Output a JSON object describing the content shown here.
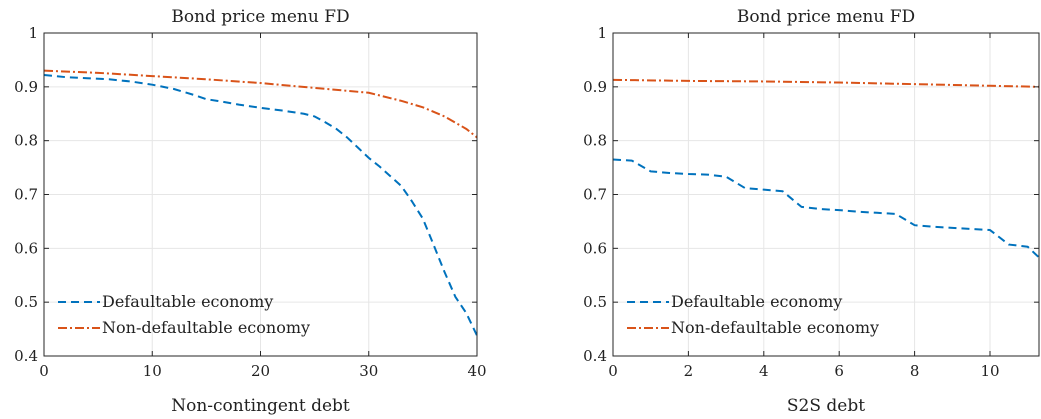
{
  "chart_data": [
    {
      "type": "line",
      "title": "Bond price menu FD",
      "xlabel": "Non-contingent debt",
      "ylabel": "",
      "xlim": [
        0,
        40
      ],
      "ylim": [
        0.4,
        1
      ],
      "xticks": [
        "0",
        "10",
        "20",
        "30",
        "40"
      ],
      "yticks": [
        "0.4",
        "0.5",
        "0.6",
        "0.7",
        "0.8",
        "0.9",
        "1"
      ],
      "grid": true,
      "legend": "bottom-left",
      "series": [
        {
          "name": "Defaultable economy",
          "color": "#0072BD",
          "style": "dashed",
          "x": [
            0,
            2,
            4,
            6,
            8,
            10,
            12,
            14,
            15,
            16,
            18,
            20,
            22,
            24,
            25,
            26,
            27,
            28,
            29,
            30,
            31,
            32,
            33,
            34,
            35,
            36,
            37,
            38,
            39,
            40
          ],
          "y": [
            0.922,
            0.918,
            0.916,
            0.914,
            0.91,
            0.904,
            0.896,
            0.884,
            0.877,
            0.874,
            0.867,
            0.861,
            0.856,
            0.85,
            0.845,
            0.834,
            0.822,
            0.806,
            0.787,
            0.768,
            0.752,
            0.734,
            0.716,
            0.687,
            0.655,
            0.606,
            0.556,
            0.51,
            0.48,
            0.438
          ]
        },
        {
          "name": "Non-defaultable economy",
          "color": "#D95319",
          "style": "dash-dot",
          "x": [
            0,
            5,
            10,
            15,
            20,
            25,
            30,
            33,
            35,
            37,
            39,
            40
          ],
          "y": [
            0.93,
            0.926,
            0.92,
            0.914,
            0.907,
            0.898,
            0.889,
            0.874,
            0.862,
            0.845,
            0.822,
            0.806
          ]
        }
      ]
    },
    {
      "type": "line",
      "title": "Bond price menu FD",
      "xlabel": "S2S debt",
      "ylabel": "",
      "xlim": [
        0,
        11.3
      ],
      "ylim": [
        0.4,
        1
      ],
      "xticks": [
        "0",
        "2",
        "4",
        "6",
        "8",
        "10"
      ],
      "yticks": [
        "0.4",
        "0.5",
        "0.6",
        "0.7",
        "0.8",
        "0.9",
        "1"
      ],
      "grid": true,
      "legend": "bottom-left",
      "series": [
        {
          "name": "Defaultable economy",
          "color": "#0072BD",
          "style": "dashed",
          "x": [
            0,
            0.5,
            1,
            1.5,
            2,
            2.5,
            3,
            3.5,
            4,
            4.5,
            5,
            5.5,
            6,
            6.5,
            7,
            7.5,
            8,
            8.5,
            9,
            9.5,
            10,
            10.5,
            11,
            11.3
          ],
          "y": [
            0.765,
            0.763,
            0.743,
            0.74,
            0.738,
            0.737,
            0.733,
            0.712,
            0.709,
            0.706,
            0.677,
            0.673,
            0.671,
            0.668,
            0.666,
            0.664,
            0.643,
            0.64,
            0.638,
            0.636,
            0.634,
            0.607,
            0.603,
            0.583
          ]
        },
        {
          "name": "Non-defaultable economy",
          "color": "#D95319",
          "style": "dash-dot",
          "x": [
            0,
            2,
            4,
            6,
            8,
            10,
            11.3
          ],
          "y": [
            0.913,
            0.911,
            0.91,
            0.908,
            0.905,
            0.902,
            0.9
          ]
        }
      ]
    }
  ]
}
